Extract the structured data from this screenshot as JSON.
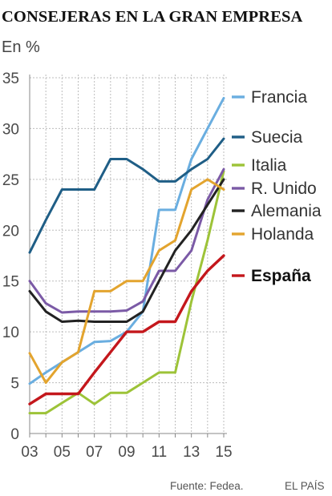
{
  "chart_data": {
    "type": "line",
    "title": "CONSEJERAS EN LA GRAN EMPRESA",
    "ylabel": "En %",
    "xlabel": "",
    "ylim": [
      0,
      35
    ],
    "yticks": [
      "0",
      "5",
      "10",
      "15",
      "20",
      "25",
      "30",
      "35"
    ],
    "xticks": [
      "03",
      "05",
      "07",
      "09",
      "11",
      "13",
      "15"
    ],
    "x": [
      2003,
      2004,
      2005,
      2006,
      2007,
      2008,
      2009,
      2010,
      2011,
      2012,
      2013,
      2014,
      2015
    ],
    "grid": true,
    "legend_position": "right",
    "series": [
      {
        "name": "Francia",
        "color": "#6aaee0",
        "bold": false,
        "values": [
          4.9,
          6.0,
          7.0,
          8.0,
          9.0,
          9.1,
          10.0,
          12.0,
          22.0,
          22.0,
          27.0,
          30.0,
          33.0
        ]
      },
      {
        "name": "Suecia",
        "color": "#1f5e86",
        "bold": false,
        "values": [
          17.8,
          21.0,
          24.0,
          24.0,
          24.0,
          27.0,
          27.0,
          26.0,
          24.8,
          24.8,
          26.0,
          27.0,
          29.0
        ]
      },
      {
        "name": "Italia",
        "color": "#9dc338",
        "bold": false,
        "values": [
          2.0,
          2.0,
          3.0,
          4.0,
          2.9,
          4.0,
          4.0,
          5.0,
          6.0,
          6.0,
          13.0,
          19.0,
          25.8
        ]
      },
      {
        "name": "R. Unido",
        "color": "#7b5aa6",
        "bold": false,
        "values": [
          15.0,
          12.8,
          11.9,
          12.0,
          12.0,
          12.0,
          12.1,
          13.0,
          16.0,
          16.0,
          18.0,
          23.0,
          26.0
        ]
      },
      {
        "name": "Alemania",
        "color": "#222222",
        "bold": false,
        "values": [
          14.0,
          12.0,
          11.0,
          11.1,
          11.0,
          11.0,
          11.0,
          12.0,
          15.0,
          18.0,
          20.0,
          22.5,
          25.0
        ]
      },
      {
        "name": "Holanda",
        "color": "#e3a42e",
        "bold": false,
        "values": [
          7.9,
          5.0,
          7.0,
          8.0,
          14.0,
          14.0,
          15.0,
          15.0,
          18.0,
          19.0,
          24.0,
          25.0,
          24.0
        ]
      },
      {
        "name": "España",
        "color": "#c4171c",
        "bold": true,
        "values": [
          2.9,
          3.9,
          3.9,
          3.9,
          6.0,
          8.0,
          10.0,
          10.0,
          11.0,
          11.0,
          14.0,
          16.0,
          17.5
        ]
      }
    ],
    "source": "Fuente: Fedea.",
    "credit": "EL PAÍS"
  }
}
